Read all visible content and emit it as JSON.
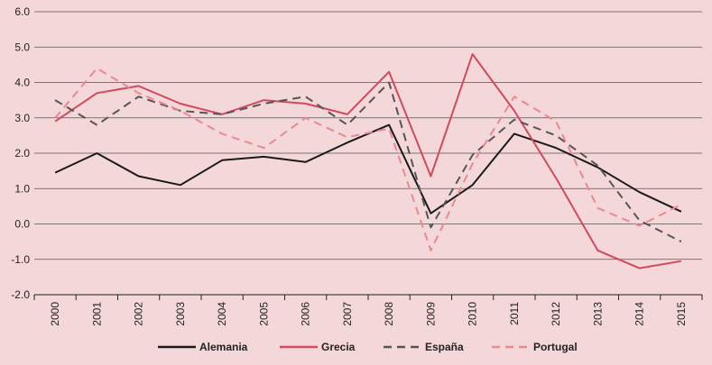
{
  "chart_data": {
    "type": "line",
    "title": "",
    "xlabel": "",
    "ylabel": "",
    "ylim": [
      -2.0,
      6.0
    ],
    "yticks": [
      -2.0,
      -1.0,
      0.0,
      1.0,
      2.0,
      3.0,
      4.0,
      5.0,
      6.0
    ],
    "ytick_labels": [
      "-2.0",
      "-1.0",
      "0.0",
      "1.0",
      "2.0",
      "3.0",
      "4.0",
      "5.0",
      "6.0"
    ],
    "categories": [
      "2000",
      "2001",
      "2002",
      "2003",
      "2004",
      "2005",
      "2006",
      "2007",
      "2008",
      "2009",
      "2010",
      "2011",
      "2012",
      "2013",
      "2014",
      "2015"
    ],
    "grid": true,
    "legend_position": "bottom",
    "series": [
      {
        "name": "Alemania",
        "color": "#1a1a1a",
        "dash": "solid",
        "values": [
          1.45,
          2.0,
          1.35,
          1.1,
          1.8,
          1.9,
          1.75,
          2.3,
          2.8,
          0.3,
          1.1,
          2.55,
          2.15,
          1.6,
          0.9,
          0.35
        ]
      },
      {
        "name": "Grecia",
        "color": "#d24a5c",
        "dash": "solid",
        "values": [
          2.9,
          3.7,
          3.9,
          3.4,
          3.1,
          3.5,
          3.4,
          3.1,
          4.3,
          1.35,
          4.8,
          3.2,
          1.3,
          -0.75,
          -1.25,
          -1.05
        ]
      },
      {
        "name": "España",
        "color": "#555555",
        "dash": "dashed",
        "values": [
          3.5,
          2.8,
          3.6,
          3.2,
          3.1,
          3.4,
          3.6,
          2.8,
          4.0,
          -0.1,
          1.95,
          2.95,
          2.5,
          1.65,
          0.1,
          -0.5
        ]
      },
      {
        "name": "Portugal",
        "color": "#e98a8e",
        "dash": "dashed",
        "values": [
          3.0,
          4.4,
          3.7,
          3.2,
          2.55,
          2.15,
          3.0,
          2.45,
          2.7,
          -0.75,
          1.7,
          3.6,
          2.9,
          0.45,
          -0.05,
          0.55
        ]
      }
    ]
  }
}
